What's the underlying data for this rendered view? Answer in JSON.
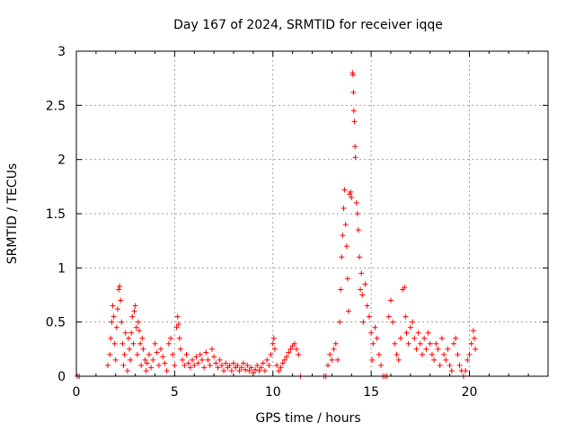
{
  "chart_data": {
    "type": "scatter",
    "title": "Day 167 of 2024, SRMTID for receiver iqqe",
    "xlabel": "GPS time / hours",
    "ylabel": "SRMTID / TECUs",
    "xlim": [
      0,
      24
    ],
    "ylim": [
      0,
      3
    ],
    "xticks": [
      0,
      5,
      10,
      15,
      20
    ],
    "xtick_labels": [
      "0",
      "5",
      "10",
      "15",
      "20"
    ],
    "yticks": [
      0,
      0.5,
      1,
      1.5,
      2,
      2.5,
      3
    ],
    "ytick_labels": [
      "0",
      "0.5",
      "1",
      "1.5",
      "2",
      "2.5",
      "3"
    ],
    "grid": true,
    "marker": "+",
    "color": "#ff0000",
    "series": [
      {
        "name": "SRMTID",
        "points": [
          [
            0.05,
            0
          ],
          [
            0.15,
            0
          ],
          [
            1.6,
            0.1
          ],
          [
            1.7,
            0.2
          ],
          [
            1.75,
            0.35
          ],
          [
            1.8,
            0.5
          ],
          [
            1.85,
            0.65
          ],
          [
            1.9,
            0.55
          ],
          [
            1.95,
            0.3
          ],
          [
            2.0,
            0.15
          ],
          [
            2.05,
            0.45
          ],
          [
            2.1,
            0.62
          ],
          [
            2.15,
            0.8
          ],
          [
            2.2,
            0.83
          ],
          [
            2.25,
            0.7
          ],
          [
            2.3,
            0.5
          ],
          [
            2.35,
            0.3
          ],
          [
            2.4,
            0.1
          ],
          [
            2.45,
            0.2
          ],
          [
            2.5,
            0.4
          ],
          [
            2.6,
            0.05
          ],
          [
            2.65,
            0.35
          ],
          [
            2.7,
            0.25
          ],
          [
            2.75,
            0.15
          ],
          [
            2.8,
            0.4
          ],
          [
            2.85,
            0.55
          ],
          [
            2.9,
            0.3
          ],
          [
            2.95,
            0.6
          ],
          [
            3.0,
            0.65
          ],
          [
            3.05,
            0.45
          ],
          [
            3.1,
            0.2
          ],
          [
            3.15,
            0.5
          ],
          [
            3.2,
            0.42
          ],
          [
            3.25,
            0.3
          ],
          [
            3.3,
            0.1
          ],
          [
            3.35,
            0.35
          ],
          [
            3.4,
            0.25
          ],
          [
            3.5,
            0.15
          ],
          [
            3.55,
            0.05
          ],
          [
            3.6,
            0.12
          ],
          [
            3.7,
            0.2
          ],
          [
            3.8,
            0.08
          ],
          [
            3.9,
            0.15
          ],
          [
            4.0,
            0.3
          ],
          [
            4.1,
            0.22
          ],
          [
            4.2,
            0.1
          ],
          [
            4.3,
            0.25
          ],
          [
            4.4,
            0.18
          ],
          [
            4.5,
            0.12
          ],
          [
            4.6,
            0.05
          ],
          [
            4.7,
            0.3
          ],
          [
            4.8,
            0.35
          ],
          [
            4.9,
            0.2
          ],
          [
            5.0,
            0.1
          ],
          [
            5.1,
            0.45
          ],
          [
            5.15,
            0.55
          ],
          [
            5.2,
            0.48
          ],
          [
            5.25,
            0.35
          ],
          [
            5.3,
            0.25
          ],
          [
            5.4,
            0.15
          ],
          [
            5.5,
            0.1
          ],
          [
            5.6,
            0.2
          ],
          [
            5.7,
            0.12
          ],
          [
            5.8,
            0.08
          ],
          [
            5.9,
            0.15
          ],
          [
            6.0,
            0.1
          ],
          [
            6.1,
            0.18
          ],
          [
            6.2,
            0.12
          ],
          [
            6.3,
            0.2
          ],
          [
            6.4,
            0.15
          ],
          [
            6.5,
            0.08
          ],
          [
            6.6,
            0.22
          ],
          [
            6.7,
            0.15
          ],
          [
            6.8,
            0.1
          ],
          [
            6.9,
            0.25
          ],
          [
            7.0,
            0.18
          ],
          [
            7.1,
            0.12
          ],
          [
            7.2,
            0.08
          ],
          [
            7.3,
            0.15
          ],
          [
            7.4,
            0.1
          ],
          [
            7.5,
            0.05
          ],
          [
            7.6,
            0.12
          ],
          [
            7.7,
            0.08
          ],
          [
            7.8,
            0.1
          ],
          [
            7.9,
            0.05
          ],
          [
            8.0,
            0.12
          ],
          [
            8.1,
            0.08
          ],
          [
            8.2,
            0.1
          ],
          [
            8.3,
            0.05
          ],
          [
            8.4,
            0.08
          ],
          [
            8.5,
            0.12
          ],
          [
            8.6,
            0.06
          ],
          [
            8.7,
            0.1
          ],
          [
            8.8,
            0.05
          ],
          [
            8.9,
            0.08
          ],
          [
            9.0,
            0.03
          ],
          [
            9.1,
            0.06
          ],
          [
            9.2,
            0.1
          ],
          [
            9.3,
            0.05
          ],
          [
            9.4,
            0.08
          ],
          [
            9.5,
            0.12
          ],
          [
            9.6,
            0.05
          ],
          [
            9.7,
            0.15
          ],
          [
            9.8,
            0.1
          ],
          [
            9.9,
            0.2
          ],
          [
            10.0,
            0.3
          ],
          [
            10.05,
            0.35
          ],
          [
            10.1,
            0.25
          ],
          [
            10.2,
            0.1
          ],
          [
            10.3,
            0.05
          ],
          [
            10.4,
            0.08
          ],
          [
            10.5,
            0.12
          ],
          [
            10.6,
            0.15
          ],
          [
            10.7,
            0.18
          ],
          [
            10.8,
            0.22
          ],
          [
            10.9,
            0.25
          ],
          [
            11.0,
            0.28
          ],
          [
            11.1,
            0.3
          ],
          [
            11.2,
            0.25
          ],
          [
            11.3,
            0.2
          ],
          [
            11.4,
            0
          ],
          [
            12.6,
            0
          ],
          [
            12.7,
            0
          ],
          [
            12.8,
            0.1
          ],
          [
            12.9,
            0.2
          ],
          [
            13.0,
            0.15
          ],
          [
            13.1,
            0.25
          ],
          [
            13.2,
            0.3
          ],
          [
            13.3,
            0.15
          ],
          [
            13.4,
            0.5
          ],
          [
            13.45,
            0.8
          ],
          [
            13.5,
            1.1
          ],
          [
            13.55,
            1.3
          ],
          [
            13.6,
            1.55
          ],
          [
            13.65,
            1.72
          ],
          [
            13.7,
            1.4
          ],
          [
            13.75,
            1.2
          ],
          [
            13.8,
            0.9
          ],
          [
            13.85,
            0.6
          ],
          [
            13.9,
            1.68
          ],
          [
            13.95,
            1.7
          ],
          [
            14.0,
            1.65
          ],
          [
            14.05,
            2.8
          ],
          [
            14.08,
            2.78
          ],
          [
            14.1,
            2.62
          ],
          [
            14.12,
            2.45
          ],
          [
            14.15,
            2.35
          ],
          [
            14.18,
            2.12
          ],
          [
            14.2,
            2.02
          ],
          [
            14.25,
            1.6
          ],
          [
            14.3,
            1.5
          ],
          [
            14.35,
            1.35
          ],
          [
            14.4,
            1.1
          ],
          [
            14.45,
            0.8
          ],
          [
            14.5,
            0.95
          ],
          [
            14.55,
            0.75
          ],
          [
            14.6,
            0.5
          ],
          [
            14.7,
            0.85
          ],
          [
            14.8,
            0.65
          ],
          [
            14.9,
            0.55
          ],
          [
            15.0,
            0.4
          ],
          [
            15.05,
            0.15
          ],
          [
            15.1,
            0.3
          ],
          [
            15.2,
            0.45
          ],
          [
            15.3,
            0.35
          ],
          [
            15.4,
            0.2
          ],
          [
            15.5,
            0.1
          ],
          [
            15.6,
            0
          ],
          [
            15.7,
            0
          ],
          [
            15.8,
            0
          ],
          [
            15.9,
            0.55
          ],
          [
            16.0,
            0.7
          ],
          [
            16.1,
            0.5
          ],
          [
            16.2,
            0.3
          ],
          [
            16.3,
            0.2
          ],
          [
            16.4,
            0.15
          ],
          [
            16.5,
            0.35
          ],
          [
            16.6,
            0.8
          ],
          [
            16.7,
            0.82
          ],
          [
            16.75,
            0.55
          ],
          [
            16.8,
            0.4
          ],
          [
            16.9,
            0.3
          ],
          [
            17.0,
            0.45
          ],
          [
            17.1,
            0.5
          ],
          [
            17.2,
            0.35
          ],
          [
            17.3,
            0.25
          ],
          [
            17.4,
            0.4
          ],
          [
            17.5,
            0.3
          ],
          [
            17.6,
            0.2
          ],
          [
            17.7,
            0.35
          ],
          [
            17.8,
            0.25
          ],
          [
            17.9,
            0.4
          ],
          [
            18.0,
            0.3
          ],
          [
            18.1,
            0.2
          ],
          [
            18.2,
            0.15
          ],
          [
            18.3,
            0.3
          ],
          [
            18.4,
            0.25
          ],
          [
            18.5,
            0.1
          ],
          [
            18.6,
            0.35
          ],
          [
            18.7,
            0.2
          ],
          [
            18.8,
            0.15
          ],
          [
            18.9,
            0.25
          ],
          [
            19.0,
            0.1
          ],
          [
            19.1,
            0.05
          ],
          [
            19.2,
            0.3
          ],
          [
            19.3,
            0.35
          ],
          [
            19.4,
            0.2
          ],
          [
            19.5,
            0.1
          ],
          [
            19.6,
            0.05
          ],
          [
            19.7,
            0
          ],
          [
            19.8,
            0.05
          ],
          [
            19.9,
            0.15
          ],
          [
            20.0,
            0.2
          ],
          [
            20.1,
            0.3
          ],
          [
            20.2,
            0.42
          ],
          [
            20.25,
            0.35
          ],
          [
            20.3,
            0.25
          ]
        ]
      }
    ]
  }
}
